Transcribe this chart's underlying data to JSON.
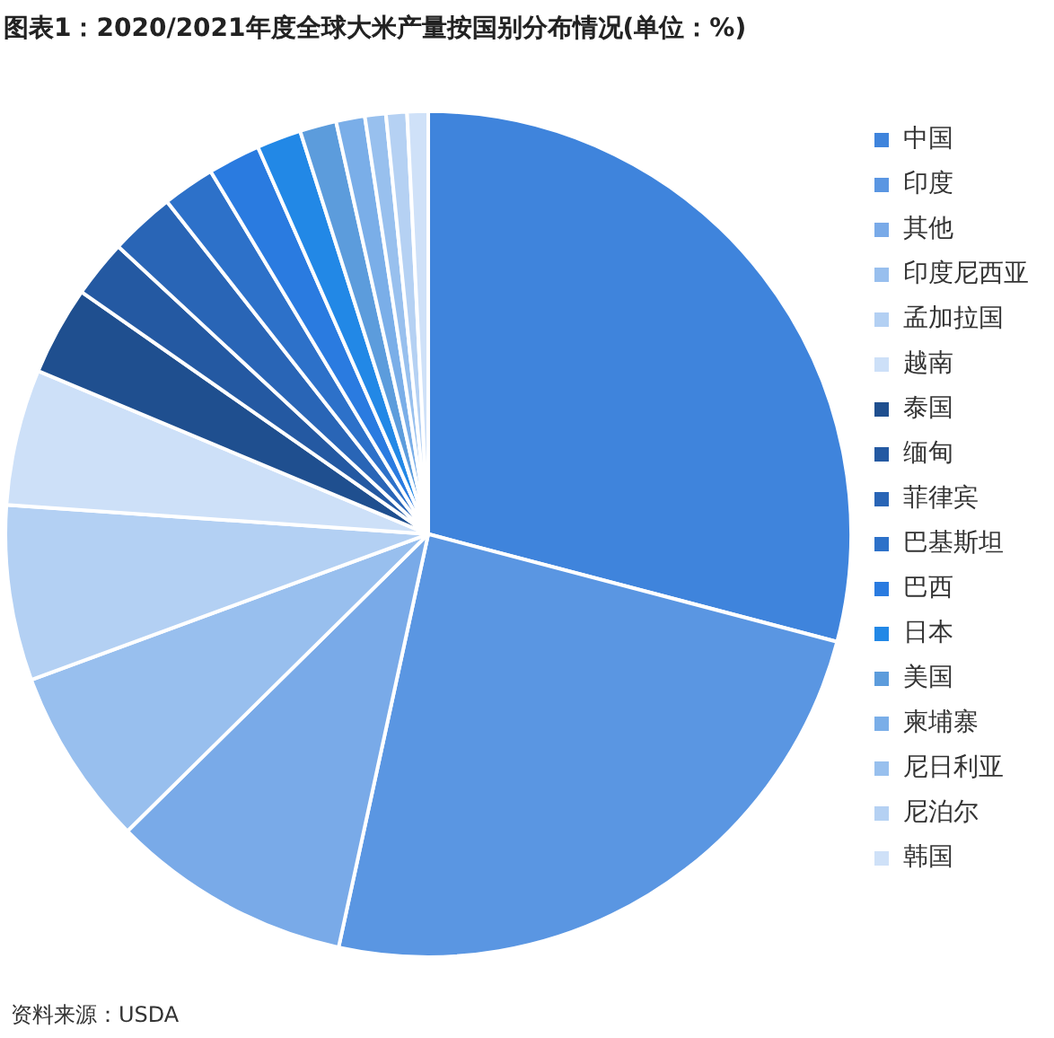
{
  "chart_data": {
    "type": "pie",
    "title": "图表1：2020/2021年度全球大米产量按国别分布情况(单位：%)",
    "categories": [
      "中国",
      "印度",
      "其他",
      "印度尼西亚",
      "孟加拉国",
      "越南",
      "泰国",
      "缅甸",
      "菲律宾",
      "巴基斯坦",
      "巴西",
      "日本",
      "美国",
      "柬埔寨",
      "尼日利亚",
      "尼泊尔",
      "韩国"
    ],
    "values": [
      29.1,
      24.3,
      9.2,
      6.8,
      6.7,
      5.2,
      3.4,
      2.2,
      2.5,
      2,
      2,
      1.7,
      1.4,
      1.1,
      0.8,
      0.8,
      0.8
    ],
    "colors": [
      "#3f84dc",
      "#5a96e2",
      "#79aae8",
      "#98bfee",
      "#b3d0f3",
      "#cde0f8",
      "#1f4f8f",
      "#2459a2",
      "#2965b6",
      "#2d71c9",
      "#2a7be0",
      "#2288e6",
      "#5c9cdc",
      "#7aaee8",
      "#98c0ee",
      "#b5d1f3",
      "#cfe1f8"
    ],
    "legend": "right",
    "annotations": [
      "资料来源：USDA"
    ]
  }
}
